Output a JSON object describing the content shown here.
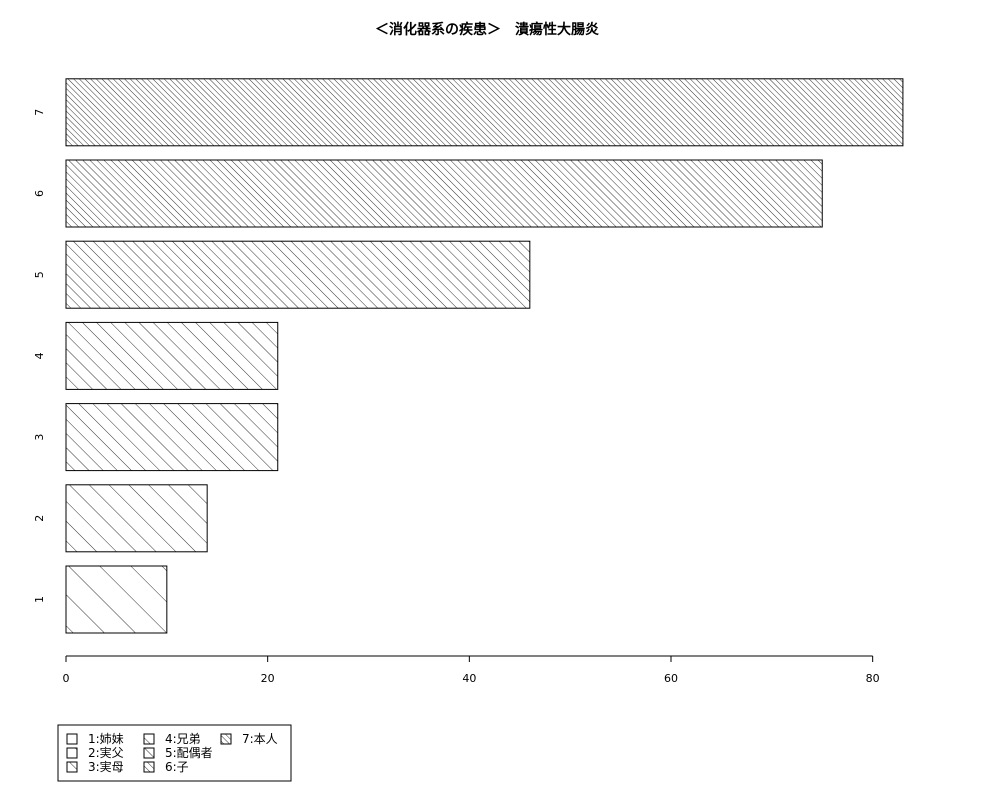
{
  "chart_data": {
    "type": "bar",
    "orientation": "horizontal",
    "title": "＜消化器系の疾患＞　潰瘍性大腸炎",
    "categories": [
      "1",
      "2",
      "3",
      "4",
      "5",
      "6",
      "7"
    ],
    "values": [
      10,
      14,
      21,
      21,
      46,
      75,
      83
    ],
    "xlim": [
      0,
      84
    ],
    "x_ticks": [
      0,
      20,
      40,
      60,
      80
    ],
    "xlabel": "",
    "ylabel": "",
    "grid": false,
    "legend_position": "bottom-left",
    "legend": [
      {
        "label": "1:姉妹"
      },
      {
        "label": "2:実父"
      },
      {
        "label": "3:実母"
      },
      {
        "label": "4:兄弟"
      },
      {
        "label": "5:配偶者"
      },
      {
        "label": "6:子"
      },
      {
        "label": "7:本人"
      }
    ],
    "bar_fill": "#ffffff",
    "hatch_color": "#000000"
  }
}
